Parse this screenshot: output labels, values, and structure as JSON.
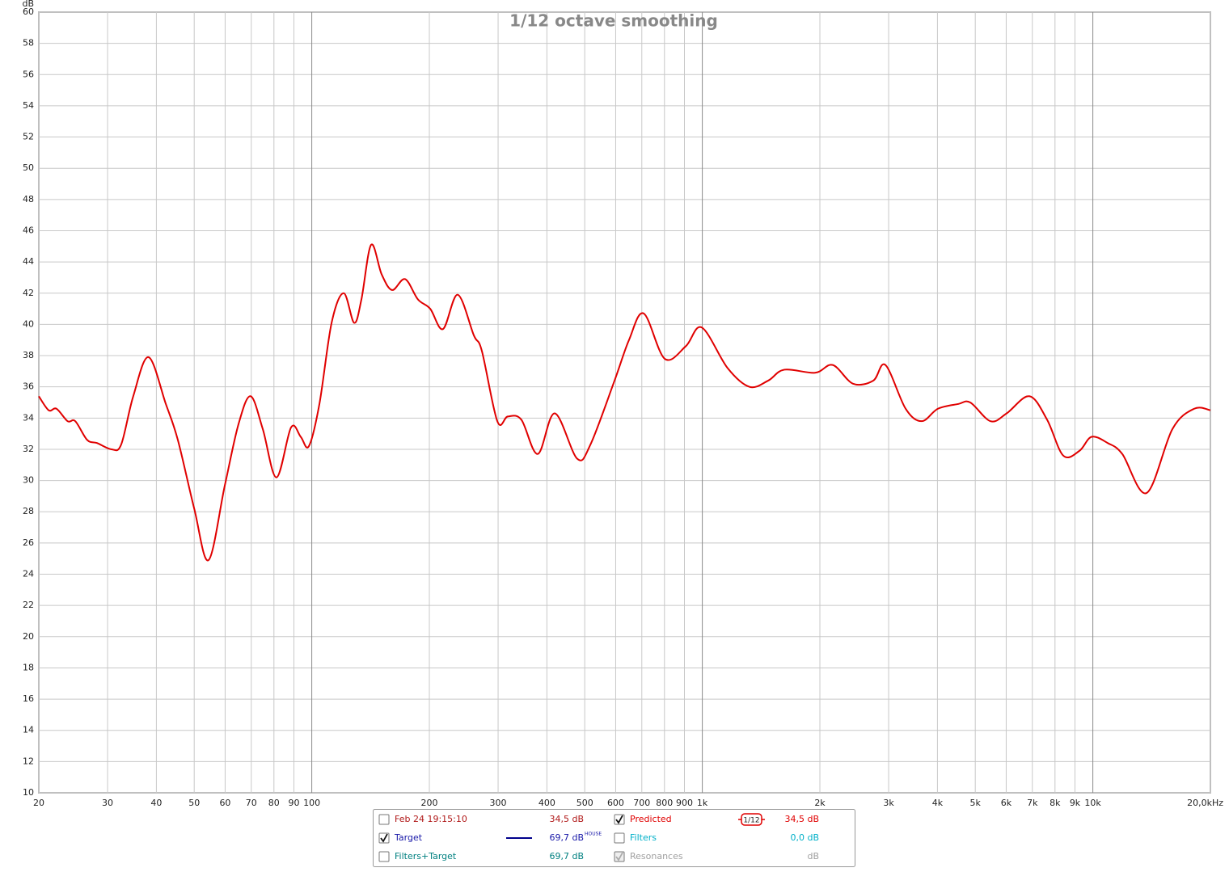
{
  "chart_data": {
    "type": "line",
    "title": "1/12 octave smoothing",
    "y_label": "dB",
    "x_log": true,
    "grid": true,
    "xlim": [
      20,
      20000
    ],
    "ylim": [
      10,
      60
    ],
    "yticks": [
      10,
      12,
      14,
      16,
      18,
      20,
      22,
      24,
      26,
      28,
      30,
      32,
      34,
      36,
      38,
      40,
      42,
      44,
      46,
      48,
      50,
      52,
      54,
      56,
      58,
      60
    ],
    "xticks": [
      20,
      30,
      40,
      50,
      60,
      70,
      80,
      90,
      100,
      200,
      300,
      400,
      500,
      600,
      700,
      800,
      900,
      {
        "value": 1000,
        "label": "1k"
      },
      {
        "value": 2000,
        "label": "2k"
      },
      {
        "value": 3000,
        "label": "3k"
      },
      {
        "value": 4000,
        "label": "4k"
      },
      {
        "value": 5000,
        "label": "5k"
      },
      {
        "value": 6000,
        "label": "6k"
      },
      {
        "value": 7000,
        "label": "7k"
      },
      {
        "value": 8000,
        "label": "8k"
      },
      {
        "value": 9000,
        "label": "9k"
      },
      {
        "value": 10000,
        "label": "10k"
      },
      {
        "value": 20000,
        "label": "20,0kHz"
      }
    ],
    "x": [
      20,
      21.2,
      22.2,
      23.7,
      24.8,
      26.6,
      28.2,
      30.7,
      32.5,
      34.9,
      38.2,
      42.3,
      45.4,
      50,
      54.4,
      59.9,
      64.9,
      69.7,
      74.9,
      81.2,
      88.5,
      93.7,
      98.3,
      104.6,
      112.4,
      120.7,
      128.4,
      134,
      141.9,
      151,
      160.6,
      173.3,
      187,
      201,
      216.8,
      236.4,
      260,
      272.6,
      298.6,
      317.6,
      344,
      379,
      419,
      478,
      517,
      596,
      649,
      708,
      801,
      907,
      997,
      1161,
      1321,
      1475,
      1622,
      1944,
      2158,
      2432,
      2740,
      2944,
      3316,
      3647,
      4012,
      4520,
      4854,
      5470,
      6016,
      6877,
      7634,
      8397,
      9238,
      9926,
      10920,
      11896,
      13726,
      15988,
      18180,
      20000
    ],
    "series": [
      {
        "name": "Predicted",
        "color": "#e00000",
        "checked": true,
        "readout": "34,5 dB",
        "smoothing": "1/12",
        "values": [
          35.4,
          34.5,
          34.6,
          33.8,
          33.8,
          32.6,
          32.4,
          32.0,
          32.3,
          35.4,
          37.9,
          34.9,
          32.6,
          28.2,
          24.9,
          29.7,
          33.6,
          35.4,
          33.3,
          30.2,
          33.4,
          32.8,
          32.2,
          34.9,
          40.1,
          42.0,
          40.1,
          41.6,
          45.1,
          43.2,
          42.2,
          42.9,
          41.6,
          41.0,
          39.7,
          41.9,
          39.3,
          38.3,
          33.8,
          34.1,
          33.9,
          31.7,
          34.3,
          31.4,
          32.3,
          36.4,
          39.0,
          40.7,
          37.8,
          38.6,
          39.8,
          37.2,
          36.0,
          36.4,
          37.1,
          36.9,
          37.4,
          36.2,
          36.4,
          37.4,
          34.6,
          33.8,
          34.6,
          34.9,
          35.0,
          33.8,
          34.3,
          35.4,
          33.9,
          31.6,
          31.9,
          32.8,
          32.4,
          31.7,
          29.2,
          33.3,
          34.6,
          34.5
        ]
      }
    ],
    "other_traces": [
      {
        "name": "Feb 24 19:15:10",
        "readout": "34,5 dB",
        "checked": false,
        "color": "#b01818"
      },
      {
        "name": "Target",
        "readout": "69,7 dB",
        "note": "HOUSE",
        "checked": true,
        "color": "#1818a8",
        "line_color": "#00008b"
      },
      {
        "name": "Filters+Target",
        "readout": "69,7 dB",
        "checked": false,
        "color": "#008080"
      },
      {
        "name": "Filters",
        "readout": "0,0 dB",
        "checked": false,
        "color": "#00b0c8"
      },
      {
        "name": "Resonances",
        "readout": "dB",
        "checked": true,
        "disabled": true,
        "color": "#a0a0a0"
      }
    ]
  }
}
